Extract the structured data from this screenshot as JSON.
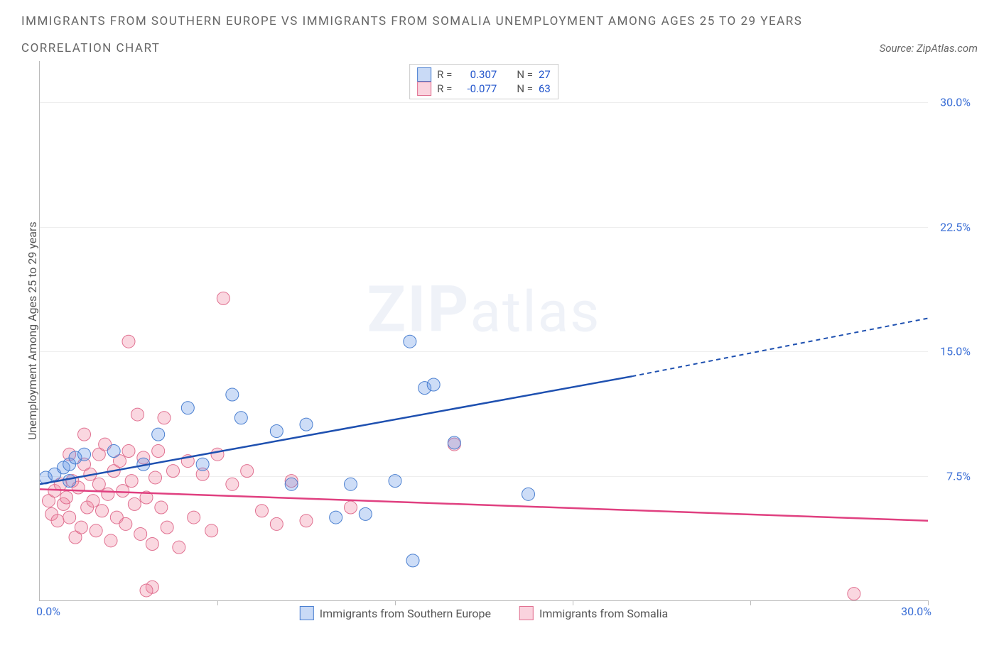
{
  "title_line1": "IMMIGRANTS FROM SOUTHERN EUROPE VS IMMIGRANTS FROM SOMALIA UNEMPLOYMENT AMONG AGES 25 TO 29 YEARS",
  "title_line2": "CORRELATION CHART",
  "source_label": "Source: ZipAtlas.com",
  "ylabel": "Unemployment Among Ages 25 to 29 years",
  "watermark_bold": "ZIP",
  "watermark_light": "atlas",
  "chart": {
    "type": "scatter",
    "xlim": [
      0,
      30
    ],
    "ylim": [
      0,
      32.5
    ],
    "x_start_label": "0.0%",
    "x_end_label": "30.0%",
    "ytick_labels": [
      "7.5%",
      "15.0%",
      "22.5%",
      "30.0%"
    ],
    "ytick_values": [
      7.5,
      15.0,
      22.5,
      30.0
    ],
    "xtick_values": [
      6,
      12,
      18,
      24,
      30
    ],
    "grid_color": "#eeeeee",
    "axis_color": "#bbbbbb",
    "ytick_label_color": "#3b6fd6",
    "background_color": "#ffffff",
    "marker_radius": 9,
    "marker_opacity": 0.32,
    "series": [
      {
        "name": "Immigrants from Southern Europe",
        "label": "Immigrants from Southern Europe",
        "color_fill": "#6496e6",
        "color_stroke": "#4a7fd0",
        "line_color": "#1e50b0",
        "R": "0.307",
        "N": "27",
        "regression": {
          "x0": 0,
          "y0": 7.0,
          "x1_solid": 20,
          "y1_solid": 13.5,
          "x1_dash": 30,
          "y1_dash": 17.0
        },
        "points": [
          [
            0.2,
            7.4
          ],
          [
            0.5,
            7.6
          ],
          [
            0.8,
            8.0
          ],
          [
            1.0,
            7.2
          ],
          [
            1.0,
            8.2
          ],
          [
            1.2,
            8.6
          ],
          [
            1.5,
            8.8
          ],
          [
            2.5,
            9.0
          ],
          [
            3.5,
            8.2
          ],
          [
            4.0,
            10.0
          ],
          [
            5.0,
            11.6
          ],
          [
            5.5,
            8.2
          ],
          [
            6.5,
            12.4
          ],
          [
            6.8,
            11.0
          ],
          [
            8.0,
            10.2
          ],
          [
            8.5,
            7.0
          ],
          [
            9.0,
            10.6
          ],
          [
            10.0,
            5.0
          ],
          [
            10.5,
            7.0
          ],
          [
            11.0,
            5.2
          ],
          [
            12.0,
            7.2
          ],
          [
            12.5,
            15.6
          ],
          [
            13.0,
            12.8
          ],
          [
            12.6,
            2.4
          ],
          [
            13.3,
            13.0
          ],
          [
            16.5,
            6.4
          ],
          [
            14.0,
            9.5
          ]
        ]
      },
      {
        "name": "Immigrants from Somalia",
        "label": "Immigrants from Somalia",
        "color_fill": "#f082a0",
        "color_stroke": "#e07090",
        "line_color": "#e04080",
        "R": "-0.077",
        "N": "63",
        "regression": {
          "x0": 0,
          "y0": 6.7,
          "x1_solid": 30,
          "y1_solid": 4.8,
          "x1_dash": 30,
          "y1_dash": 4.8
        },
        "points": [
          [
            0.3,
            6.0
          ],
          [
            0.4,
            5.2
          ],
          [
            0.5,
            6.6
          ],
          [
            0.6,
            4.8
          ],
          [
            0.7,
            7.0
          ],
          [
            0.8,
            5.8
          ],
          [
            0.9,
            6.2
          ],
          [
            1.0,
            8.8
          ],
          [
            1.0,
            5.0
          ],
          [
            1.1,
            7.2
          ],
          [
            1.2,
            3.8
          ],
          [
            1.3,
            6.8
          ],
          [
            1.4,
            4.4
          ],
          [
            1.5,
            8.2
          ],
          [
            1.5,
            10.0
          ],
          [
            1.6,
            5.6
          ],
          [
            1.7,
            7.6
          ],
          [
            1.8,
            6.0
          ],
          [
            1.9,
            4.2
          ],
          [
            2.0,
            8.8
          ],
          [
            2.0,
            7.0
          ],
          [
            2.1,
            5.4
          ],
          [
            2.2,
            9.4
          ],
          [
            2.3,
            6.4
          ],
          [
            2.4,
            3.6
          ],
          [
            2.5,
            7.8
          ],
          [
            2.6,
            5.0
          ],
          [
            2.7,
            8.4
          ],
          [
            2.8,
            6.6
          ],
          [
            2.9,
            4.6
          ],
          [
            3.0,
            9.0
          ],
          [
            3.0,
            15.6
          ],
          [
            3.1,
            7.2
          ],
          [
            3.2,
            5.8
          ],
          [
            3.3,
            11.2
          ],
          [
            3.4,
            4.0
          ],
          [
            3.5,
            8.6
          ],
          [
            3.6,
            6.2
          ],
          [
            3.8,
            0.8
          ],
          [
            3.8,
            3.4
          ],
          [
            3.9,
            7.4
          ],
          [
            4.0,
            9.0
          ],
          [
            4.1,
            5.6
          ],
          [
            4.2,
            11.0
          ],
          [
            4.3,
            4.4
          ],
          [
            4.5,
            7.8
          ],
          [
            4.7,
            3.2
          ],
          [
            5.0,
            8.4
          ],
          [
            5.2,
            5.0
          ],
          [
            5.5,
            7.6
          ],
          [
            5.8,
            4.2
          ],
          [
            6.0,
            8.8
          ],
          [
            6.2,
            18.2
          ],
          [
            6.5,
            7.0
          ],
          [
            7.0,
            7.8
          ],
          [
            7.5,
            5.4
          ],
          [
            8.0,
            4.6
          ],
          [
            8.5,
            7.2
          ],
          [
            9.0,
            4.8
          ],
          [
            10.5,
            5.6
          ],
          [
            14.0,
            9.4
          ],
          [
            27.5,
            0.4
          ],
          [
            3.6,
            0.6
          ]
        ]
      }
    ]
  },
  "legend_top": {
    "r_label": "R =",
    "n_label": "N ="
  }
}
